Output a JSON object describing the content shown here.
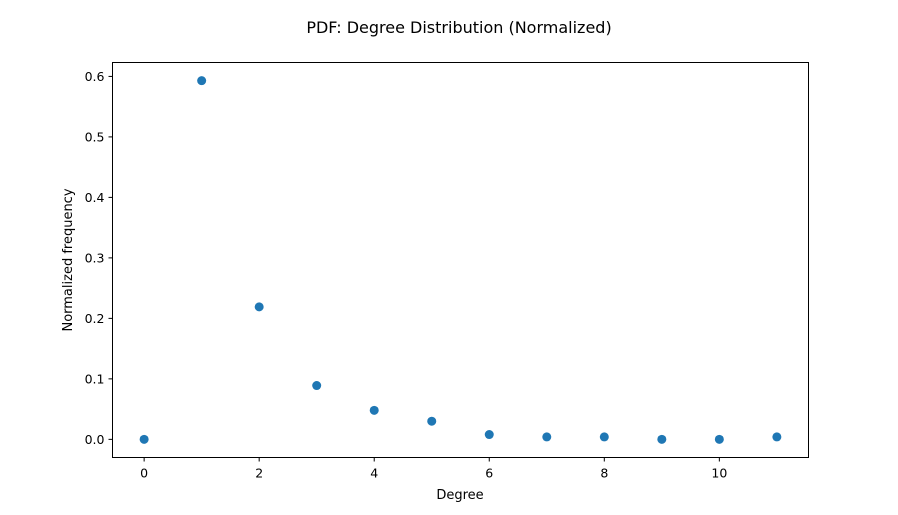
{
  "chart_data": {
    "type": "scatter",
    "title": "PDF: Degree Distribution (Normalized)",
    "xlabel": "Degree",
    "ylabel": "Normalized frequency",
    "x": [
      0,
      1,
      2,
      3,
      4,
      5,
      6,
      7,
      8,
      9,
      10,
      11
    ],
    "y": [
      0.0,
      0.593,
      0.219,
      0.089,
      0.048,
      0.03,
      0.008,
      0.004,
      0.004,
      0.0,
      0.0,
      0.004
    ],
    "xlim": [
      -0.55,
      11.55
    ],
    "ylim": [
      -0.03,
      0.623
    ],
    "xticks": [
      0,
      2,
      4,
      6,
      8,
      10
    ],
    "yticks": [
      0.0,
      0.1,
      0.2,
      0.3,
      0.4,
      0.5,
      0.6
    ],
    "xtick_labels": [
      "0",
      "2",
      "4",
      "6",
      "8",
      "10"
    ],
    "ytick_labels": [
      "0.0",
      "0.1",
      "0.2",
      "0.3",
      "0.4",
      "0.5",
      "0.6"
    ],
    "grid": false,
    "marker_color": "#1f77b4"
  }
}
